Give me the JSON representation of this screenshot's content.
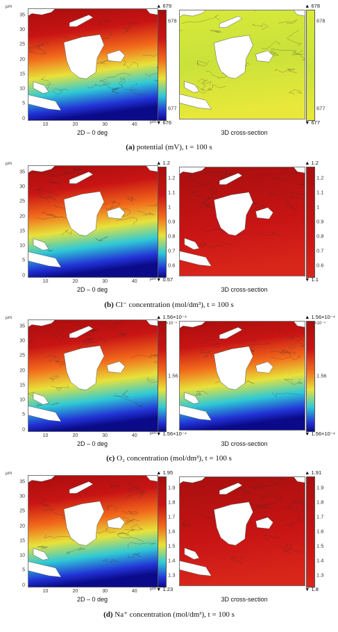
{
  "axis_unit_y": "µm",
  "axis_unit_x": "µm",
  "y_ticks": [
    "0",
    "5",
    "10",
    "15",
    "20",
    "25",
    "30",
    "35"
  ],
  "x_ticks": [
    "10",
    "20",
    "30",
    "40"
  ],
  "left_label": "2D – 0 deg",
  "right_label": "3D cross-section",
  "panels": [
    {
      "caption_letter": "(a)",
      "caption_text": " potential (mV), t = 100 s",
      "left": {
        "max": "679",
        "min": "676",
        "ticks": [
          "678",
          "677"
        ],
        "mult": "",
        "scheme": "full"
      },
      "right": {
        "max": "678",
        "min": "677",
        "ticks": [
          "678",
          "677"
        ],
        "mult": "",
        "scheme": "yellow"
      }
    },
    {
      "caption_letter": "(b)",
      "caption_text": " Cl⁻ concentration (mol/dm³), t = 100 s",
      "left": {
        "max": "1.2",
        "min": "0.57",
        "ticks": [
          "1.2",
          "1.1",
          "1",
          "0.9",
          "0.8",
          "0.7",
          "0.6"
        ],
        "mult": "",
        "scheme": "full"
      },
      "right": {
        "max": "1.2",
        "min": "1.1",
        "ticks": [
          "1.2",
          "1.1",
          "1",
          "0.9",
          "0.8",
          "0.7",
          "0.6"
        ],
        "mult": "",
        "scheme": "red"
      }
    },
    {
      "caption_letter": "(c)",
      "caption_text": " O₂ concentration (mol/dm³), t = 100 s",
      "left": {
        "max": "1.56×10⁻⁴",
        "min": "1.56×10⁻⁴",
        "ticks": [
          "1.56"
        ],
        "mult": "×10⁻⁴",
        "scheme": "full"
      },
      "right": {
        "max": "1.56×10⁻⁴",
        "min": "1.56×10⁻⁴",
        "ticks": [
          "1.56"
        ],
        "mult": "×10⁻⁴",
        "scheme": "full"
      }
    },
    {
      "caption_letter": "(d)",
      "caption_text": " Na⁺ concentration (mol/dm³), t = 100 s",
      "left": {
        "max": "1.95",
        "min": "1.23",
        "ticks": [
          "1.9",
          "1.8",
          "1.7",
          "1.6",
          "1.5",
          "1.4",
          "1.3"
        ],
        "mult": "",
        "scheme": "full"
      },
      "right": {
        "max": "1.91",
        "min": "1.8",
        "ticks": [
          "1.9",
          "1.8",
          "1.7",
          "1.6",
          "1.5",
          "1.4",
          "1.3"
        ],
        "mult": "",
        "scheme": "red"
      }
    }
  ],
  "colors": {
    "red": "#c81414",
    "orange": "#f26a1b",
    "yellow": "#e8e23a",
    "cyan": "#2fc9d6",
    "blue": "#2233d6",
    "navy": "#0b0b8a",
    "pale_yellow": "#d8ea3a"
  }
}
